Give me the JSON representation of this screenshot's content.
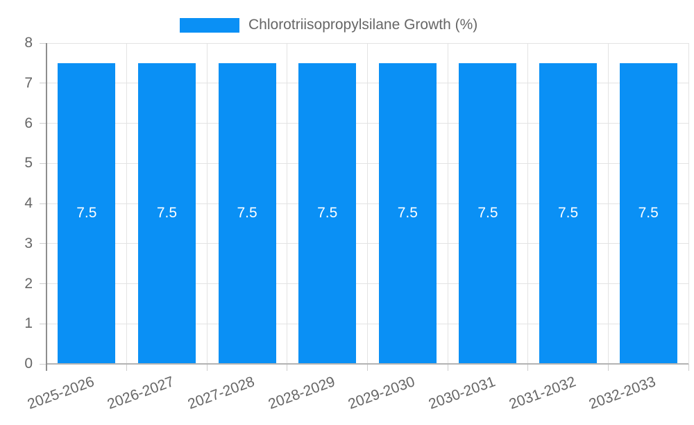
{
  "chart_data": {
    "type": "bar",
    "title": "Chlorotriisopropylsilane Growth (%)",
    "categories": [
      "2025-2026",
      "2026-2027",
      "2027-2028",
      "2028-2029",
      "2029-2030",
      "2030-2031",
      "2031-2032",
      "2032-2033"
    ],
    "series": [
      {
        "name": "Chlorotriisopropylsilane Growth (%)",
        "values": [
          7.5,
          7.5,
          7.5,
          7.5,
          7.5,
          7.5,
          7.5,
          7.5
        ]
      }
    ],
    "value_labels": [
      "7.5",
      "7.5",
      "7.5",
      "7.5",
      "7.5",
      "7.5",
      "7.5",
      "7.5"
    ],
    "xlabel": "",
    "ylabel": "",
    "ylim": [
      0,
      8
    ],
    "yticks": [
      0,
      1,
      2,
      3,
      4,
      5,
      6,
      7,
      8
    ],
    "grid": true,
    "legend_position": "top",
    "x_tick_rotation_deg": -20
  },
  "colors": {
    "bar": "#0a90f5",
    "grid": "#e3e3e3",
    "tick": "#cccccc",
    "axis": "#8e8e8e",
    "baseline": "#b3b3b3",
    "text": "#666666",
    "value_label": "#ffffff",
    "background": "#ffffff"
  }
}
